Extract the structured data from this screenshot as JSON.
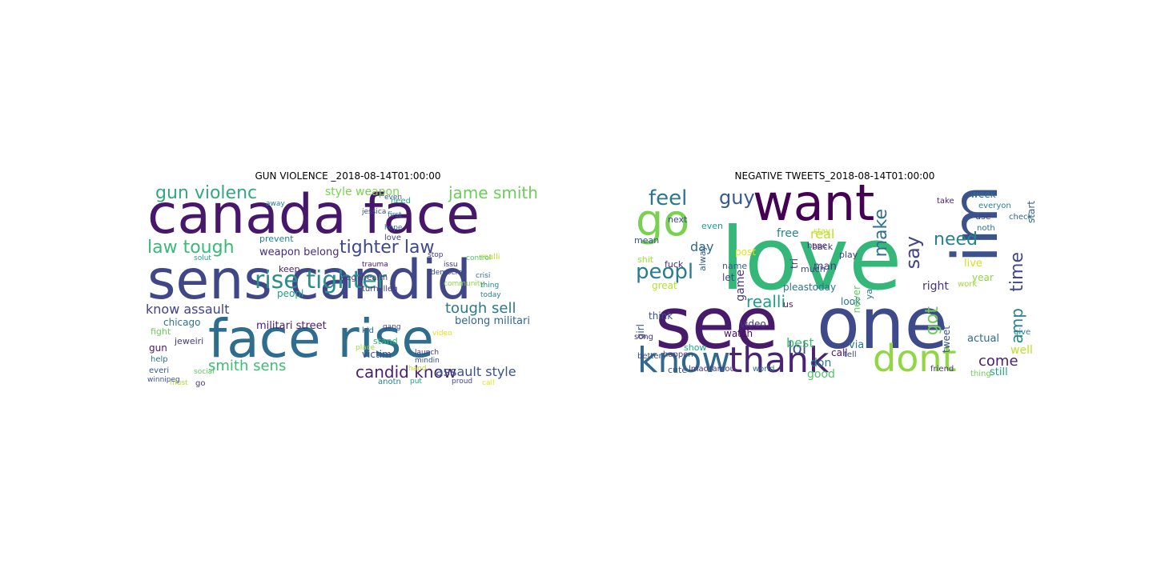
{
  "figures": [
    {
      "title": "GUN VIOLENCE _2018-08-14T01:00:00",
      "words": [
        {
          "text": "canada face",
          "color": "#46176b"
        },
        {
          "text": "sens candid",
          "color": "#3f4788"
        },
        {
          "text": "face rise",
          "color": "#2e6d8e"
        },
        {
          "text": "rise tighter",
          "color": "#2a8f8a"
        },
        {
          "text": "gun violenc",
          "color": "#33a780"
        },
        {
          "text": "jame smith",
          "color": "#6ccd5a"
        },
        {
          "text": "law tough",
          "color": "#3cb878"
        },
        {
          "text": "tighter law",
          "color": "#3d4a89"
        },
        {
          "text": "style weapon",
          "color": "#7ad151"
        },
        {
          "text": "know assault",
          "color": "#404387"
        },
        {
          "text": "tough sell",
          "color": "#2a788e"
        },
        {
          "text": "smith sens",
          "color": "#3dbc74"
        },
        {
          "text": "candid know",
          "color": "#482173"
        },
        {
          "text": "assault style",
          "color": "#3b528b"
        },
        {
          "text": "militari street",
          "color": "#481f70"
        },
        {
          "text": "belong militari",
          "color": "#31688e"
        },
        {
          "text": "weapon belong",
          "color": "#472c7a"
        },
        {
          "text": "chicago",
          "color": "#2c728e"
        },
        {
          "text": "prevent",
          "color": "#26828e"
        },
        {
          "text": "keep",
          "color": "#482475"
        },
        {
          "text": "peopl",
          "color": "#1f9e89"
        },
        {
          "text": "turn illeg",
          "color": "#433e85"
        },
        {
          "text": "illeg firearm",
          "color": "#46337e"
        },
        {
          "text": "victim",
          "color": "#3e4a89"
        },
        {
          "text": "stand",
          "color": "#35b779"
        },
        {
          "text": "jeweiri",
          "color": "#453882"
        },
        {
          "text": "fight",
          "color": "#6ece58"
        },
        {
          "text": "gun",
          "color": "#481567"
        },
        {
          "text": "help",
          "color": "#2d708e"
        },
        {
          "text": "everi",
          "color": "#3a548c"
        },
        {
          "text": "must",
          "color": "#b5de2b"
        },
        {
          "text": "go",
          "color": "#443983"
        },
        {
          "text": "kid",
          "color": "#31688e"
        },
        {
          "text": "place",
          "color": "#9fda3a"
        },
        {
          "text": "love",
          "color": "#414487"
        },
        {
          "text": "hope",
          "color": "#2f6c8e"
        },
        {
          "text": "stop",
          "color": "#443a83"
        },
        {
          "text": "need",
          "color": "#22a884"
        },
        {
          "text": "community",
          "color": "#8fd744"
        },
        {
          "text": "democrat",
          "color": "#3e4989"
        },
        {
          "text": "realli",
          "color": "#c2df23"
        },
        {
          "text": "issu",
          "color": "#46337e"
        },
        {
          "text": "crisi",
          "color": "#2c728e"
        },
        {
          "text": "thing",
          "color": "#25848e"
        },
        {
          "text": "today",
          "color": "#27808e"
        },
        {
          "text": "solut",
          "color": "#20a386"
        },
        {
          "text": "social",
          "color": "#5ec962"
        },
        {
          "text": "winnipeg",
          "color": "#3b518b"
        },
        {
          "text": "anotn",
          "color": "#24868e"
        },
        {
          "text": "proud",
          "color": "#3f4889"
        },
        {
          "text": "call",
          "color": "#e5e419"
        },
        {
          "text": "put",
          "color": "#1fa188"
        },
        {
          "text": "mindin",
          "color": "#3d4e8a"
        },
        {
          "text": "launch",
          "color": "#453781"
        },
        {
          "text": "hand",
          "color": "#bddf26"
        },
        {
          "text": "first",
          "color": "#2a768e"
        },
        {
          "text": "control",
          "color": "#52c569"
        },
        {
          "text": "jessica",
          "color": "#3b528b"
        },
        {
          "text": "trauma",
          "color": "#481a6c"
        },
        {
          "text": "even",
          "color": "#365c8d"
        },
        {
          "text": "away",
          "color": "#287c8e"
        },
        {
          "text": "video",
          "color": "#dfe318"
        },
        {
          "text": "gang",
          "color": "#3f4788"
        }
      ]
    },
    {
      "title": "NEGATIVE TWEETS_2018-08-14T01:00:00",
      "words": [
        {
          "text": "love",
          "color": "#35b779"
        },
        {
          "text": "see",
          "color": "#481a6c"
        },
        {
          "text": "one",
          "color": "#3e4a89"
        },
        {
          "text": "want",
          "color": "#440154"
        },
        {
          "text": "im",
          "color": "#3b528b"
        },
        {
          "text": "go",
          "color": "#7ad151"
        },
        {
          "text": "know",
          "color": "#31688e"
        },
        {
          "text": "thank",
          "color": "#482475"
        },
        {
          "text": "dont",
          "color": "#90d743"
        },
        {
          "text": "feel",
          "color": "#2a788e"
        },
        {
          "text": "guy",
          "color": "#38598c"
        },
        {
          "text": "say",
          "color": "#414487"
        },
        {
          "text": "make",
          "color": "#2c728e"
        },
        {
          "text": "need",
          "color": "#25848e"
        },
        {
          "text": "time",
          "color": "#3f4889"
        },
        {
          "text": "peopl",
          "color": "#287c8e"
        },
        {
          "text": "realli",
          "color": "#1f9e89"
        },
        {
          "text": "amp",
          "color": "#26828e"
        },
        {
          "text": "got",
          "color": "#6ece58"
        },
        {
          "text": "lol",
          "color": "#3d4e8a"
        },
        {
          "text": "come",
          "color": "#482173"
        },
        {
          "text": "new",
          "color": "#3b518b"
        },
        {
          "text": "game",
          "color": "#453882"
        },
        {
          "text": "day",
          "color": "#31688e"
        },
        {
          "text": "great",
          "color": "#b5de2b"
        },
        {
          "text": "right",
          "color": "#46337e"
        },
        {
          "text": "work",
          "color": "#9fda3a"
        },
        {
          "text": "week",
          "color": "#2d708e"
        },
        {
          "text": "start",
          "color": "#33638d"
        },
        {
          "text": "free",
          "color": "#24868e"
        },
        {
          "text": "real",
          "color": "#c2df23"
        },
        {
          "text": "even",
          "color": "#1fa188"
        },
        {
          "text": "man",
          "color": "#433e85"
        },
        {
          "text": "fuck",
          "color": "#472c7a"
        },
        {
          "text": "look",
          "color": "#2a768e"
        },
        {
          "text": "use",
          "color": "#404387"
        },
        {
          "text": "let",
          "color": "#3e4989"
        },
        {
          "text": "name",
          "color": "#34618d"
        },
        {
          "text": "us",
          "color": "#481f70"
        },
        {
          "text": "tri",
          "color": "#443983"
        },
        {
          "text": "never",
          "color": "#5ec962"
        },
        {
          "text": "live",
          "color": "#d2e21b"
        },
        {
          "text": "pleastoday",
          "color": "#2c728e"
        },
        {
          "text": "year",
          "color": "#8fd744"
        },
        {
          "text": "back",
          "color": "#463480"
        },
        {
          "text": "best",
          "color": "#3dbc74"
        },
        {
          "text": "don",
          "color": "#2a788e"
        },
        {
          "text": "good",
          "color": "#52c569"
        },
        {
          "text": "call",
          "color": "#481769"
        },
        {
          "text": "actual",
          "color": "#2f6c8e"
        },
        {
          "text": "girl",
          "color": "#3d4e8a"
        },
        {
          "text": "think",
          "color": "#3b528b"
        },
        {
          "text": "song",
          "color": "#453781"
        },
        {
          "text": "watch",
          "color": "#471063"
        },
        {
          "text": "show",
          "color": "#22a884"
        },
        {
          "text": "still",
          "color": "#20a386"
        },
        {
          "text": "tweet",
          "color": "#3a548c"
        },
        {
          "text": "via",
          "color": "#287c8e"
        },
        {
          "text": "well",
          "color": "#bddf26"
        },
        {
          "text": "video",
          "color": "#46337e"
        },
        {
          "text": "post",
          "color": "#e5e419"
        },
        {
          "text": "much",
          "color": "#3f4788"
        },
        {
          "text": "hope",
          "color": "#482475"
        },
        {
          "text": "ya",
          "color": "#2c728e"
        },
        {
          "text": "play",
          "color": "#404387"
        },
        {
          "text": "mean",
          "color": "#38598c"
        },
        {
          "text": "next",
          "color": "#3e4a89"
        },
        {
          "text": "everyon",
          "color": "#25848e"
        },
        {
          "text": "check",
          "color": "#31688e"
        },
        {
          "text": "friend",
          "color": "#443983"
        },
        {
          "text": "thing",
          "color": "#6ece58"
        },
        {
          "text": "give",
          "color": "#26828e"
        },
        {
          "text": "cute",
          "color": "#3b518b"
        },
        {
          "text": "lmao",
          "color": "#472c7a"
        },
        {
          "text": "famou",
          "color": "#453882"
        },
        {
          "text": "world",
          "color": "#2a768e"
        },
        {
          "text": "shit",
          "color": "#9fda3a"
        },
        {
          "text": "alway",
          "color": "#34618d"
        },
        {
          "text": "stay",
          "color": "#c2df23"
        },
        {
          "text": "tell",
          "color": "#3d4e8a"
        },
        {
          "text": "noth",
          "color": "#2d708e"
        },
        {
          "text": "happen",
          "color": "#433e85"
        },
        {
          "text": "take",
          "color": "#481f70"
        },
        {
          "text": "better",
          "color": "#3f4889"
        }
      ]
    }
  ]
}
